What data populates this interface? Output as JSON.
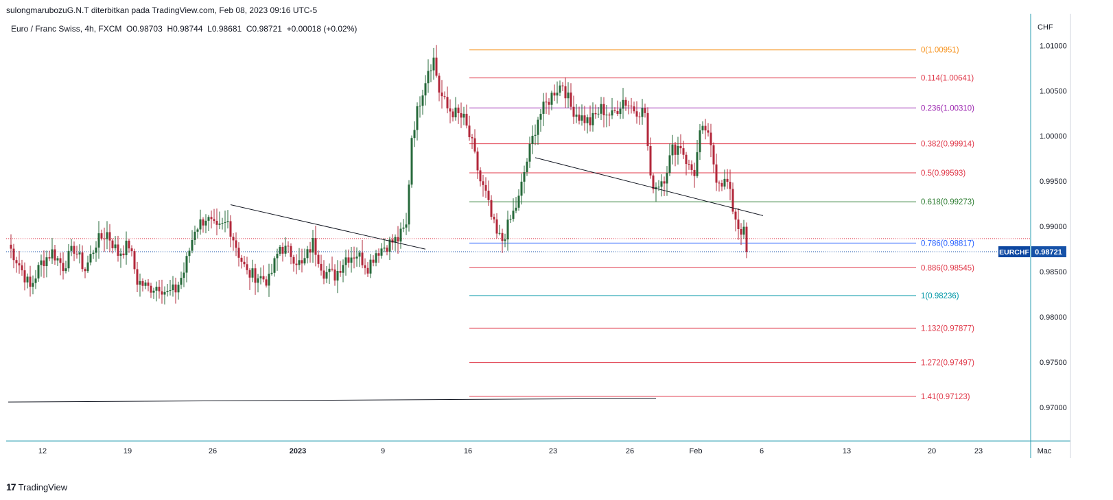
{
  "header": {
    "publish_line": "sulongmarubozuG.N.T diterbitkan pada TradingView.com, Feb 08, 2023 09:16 UTC-5"
  },
  "legend": {
    "symbol": "Euro / Franc Swiss, 4h, FXCM",
    "open": "O0.98703",
    "high": "H0.98744",
    "low": "L0.98681",
    "close": "C0.98721",
    "change": "+0.00018 (+0.02%)"
  },
  "footer": {
    "brand": "TradingView",
    "logo_text": "17"
  },
  "colors": {
    "up": "#26693a",
    "down": "#b2273a",
    "grid": "#e0e3eb",
    "axis_line": "#2a9cb0",
    "price_label_bg": "#1652a8",
    "symbol_label_bg": "#0d47a1"
  },
  "chart_data": {
    "type": "candlestick",
    "symbol": "EURCHF",
    "currency_label": "CHF",
    "y_ticks": [
      "1.01000",
      "1.00500",
      "1.00000",
      "0.99500",
      "0.99000",
      "0.98500",
      "0.98000",
      "0.97500",
      "0.97000"
    ],
    "y_tick_values": [
      1.01,
      1.005,
      1.0,
      0.995,
      0.99,
      0.985,
      0.98,
      0.975,
      0.97
    ],
    "ylim": [
      0.9663,
      1.0129
    ],
    "x_ticks": [
      "12",
      "19",
      "26",
      "2023",
      "9",
      "16",
      "23",
      "26",
      "Feb",
      "6",
      "13",
      "20",
      "23",
      "Mac"
    ],
    "x_tick_index": [
      4,
      35,
      66,
      97,
      128,
      159,
      190,
      218,
      242,
      266,
      297,
      328,
      345,
      369
    ],
    "n_bars": 270,
    "last_price": "0.98721",
    "last_price_value": 0.98721,
    "symbol_tag": "EURCHF",
    "red_dotted_level": 0.98866,
    "fib_levels": [
      {
        "label": "0(1.00951)",
        "value": 1.00951,
        "color": "#f7931e"
      },
      {
        "label": "0.114(1.00641)",
        "value": 1.00641,
        "color": "#e0394a"
      },
      {
        "label": "0.236(1.00310)",
        "value": 1.0031,
        "color": "#9c27b0"
      },
      {
        "label": "0.382(0.99914)",
        "value": 0.99914,
        "color": "#e0394a"
      },
      {
        "label": "0.5(0.99593)",
        "value": 0.99593,
        "color": "#e0394a"
      },
      {
        "label": "0.618(0.99273)",
        "value": 0.99273,
        "color": "#2e7d32"
      },
      {
        "label": "0.786(0.98817)",
        "value": 0.98817,
        "color": "#2962ff"
      },
      {
        "label": "0.886(0.98545)",
        "value": 0.98545,
        "color": "#e0394a"
      },
      {
        "label": "1(0.98236)",
        "value": 0.98236,
        "color": "#0097a7"
      },
      {
        "label": "1.132(0.97877)",
        "value": 0.97877,
        "color": "#e0394a"
      },
      {
        "label": "1.272(0.97497)",
        "value": 0.97497,
        "color": "#e0394a"
      },
      {
        "label": "1.41(0.97123)",
        "value": 0.97123,
        "color": "#e0394a"
      }
    ],
    "fib_start_bar": 168,
    "trendlines": [
      {
        "x1": 81,
        "y1": 0.9924,
        "x2": 152,
        "y2": 0.9875
      },
      {
        "x1": 192,
        "y1": 0.9976,
        "x2": 275,
        "y2": 0.9912
      },
      {
        "x1": 0,
        "y1": 0.97061,
        "x2": 236,
        "y2": 0.97101
      }
    ],
    "anchors": [
      [
        0,
        0.988
      ],
      [
        4,
        0.9858
      ],
      [
        8,
        0.9832
      ],
      [
        12,
        0.986
      ],
      [
        16,
        0.9872
      ],
      [
        20,
        0.9856
      ],
      [
        24,
        0.9876
      ],
      [
        28,
        0.9852
      ],
      [
        32,
        0.9882
      ],
      [
        36,
        0.9893
      ],
      [
        40,
        0.987
      ],
      [
        44,
        0.988
      ],
      [
        47,
        0.984
      ],
      [
        51,
        0.9832
      ],
      [
        55,
        0.9835
      ],
      [
        58,
        0.9826
      ],
      [
        61,
        0.983
      ],
      [
        64,
        0.985
      ],
      [
        68,
        0.9898
      ],
      [
        72,
        0.991
      ],
      [
        76,
        0.9895
      ],
      [
        80,
        0.9905
      ],
      [
        84,
        0.987
      ],
      [
        87,
        0.9848
      ],
      [
        91,
        0.9845
      ],
      [
        95,
        0.984
      ],
      [
        99,
        0.9878
      ],
      [
        103,
        0.987
      ],
      [
        107,
        0.9856
      ],
      [
        111,
        0.9882
      ],
      [
        115,
        0.985
      ],
      [
        119,
        0.9846
      ],
      [
        123,
        0.9866
      ],
      [
        127,
        0.987
      ],
      [
        131,
        0.9856
      ],
      [
        134,
        0.9872
      ],
      [
        138,
        0.988
      ],
      [
        142,
        0.9886
      ],
      [
        145,
        0.99
      ],
      [
        147,
        1.0
      ],
      [
        150,
        1.004
      ],
      [
        153,
        1.0075
      ],
      [
        155,
        1.0085
      ],
      [
        157,
        1.005
      ],
      [
        160,
        1.003
      ],
      [
        163,
        1.0025
      ],
      [
        166,
        1.0018
      ],
      [
        169,
        0.999
      ],
      [
        172,
        0.995
      ],
      [
        174,
        0.9935
      ],
      [
        176,
        0.991
      ],
      [
        178,
        0.989
      ],
      [
        180,
        0.9885
      ],
      [
        182,
        0.99
      ],
      [
        184,
        0.9915
      ],
      [
        186,
        0.993
      ],
      [
        188,
        0.996
      ],
      [
        190,
        0.9985
      ],
      [
        193,
        1.002
      ],
      [
        196,
        1.0035
      ],
      [
        199,
        1.005
      ],
      [
        202,
        1.0058
      ],
      [
        205,
        1.0032
      ],
      [
        208,
        1.0022
      ],
      [
        212,
        1.0015
      ],
      [
        216,
        1.003
      ],
      [
        220,
        1.0022
      ],
      [
        224,
        1.004
      ],
      [
        228,
        1.003
      ],
      [
        232,
        1.0026
      ],
      [
        234,
        0.995
      ],
      [
        236,
        0.9945
      ],
      [
        239,
        0.9955
      ],
      [
        242,
        0.9985
      ],
      [
        245,
        0.999
      ],
      [
        248,
        0.9965
      ],
      [
        250,
        0.996
      ],
      [
        252,
        1.0
      ],
      [
        254,
        1.0008
      ],
      [
        256,
        0.9985
      ],
      [
        258,
        0.9955
      ],
      [
        260,
        0.995
      ],
      [
        262,
        0.9948
      ],
      [
        264,
        0.992
      ],
      [
        266,
        0.99
      ],
      [
        268,
        0.9893
      ],
      [
        270,
        0.9878
      ],
      [
        272,
        0.9872
      ]
    ]
  }
}
